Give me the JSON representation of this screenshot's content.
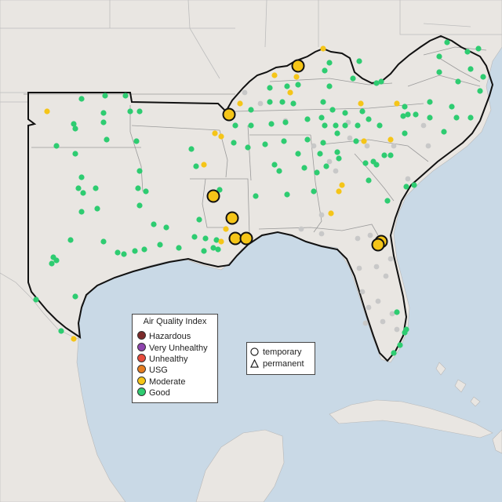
{
  "map": {
    "region": "Southeastern United States",
    "colors": {
      "ocean": "#c9d9e6",
      "land": "#e9e6e2",
      "region_boundary": "#111111",
      "state_lines": "#9a9a9a",
      "good": "#2ecc71",
      "moderate": "#f5c518",
      "usg": "#e67e22",
      "unhealthy": "#e74c3c",
      "very_unhealthy": "#8e44ad",
      "hazardous": "#7b2a2a",
      "no_data": "#c8c8c8"
    }
  },
  "legend_aqi": {
    "title": "Air Quality Index",
    "items": [
      {
        "label": "Hazardous",
        "color": "#7b2a2a"
      },
      {
        "label": "Very Unhealthy",
        "color": "#8e44ad"
      },
      {
        "label": "Unhealthy",
        "color": "#e74c3c"
      },
      {
        "label": "USG",
        "color": "#e67e22"
      },
      {
        "label": "Moderate",
        "color": "#f5c518"
      },
      {
        "label": "Good",
        "color": "#2ecc71"
      }
    ]
  },
  "legend_monitors": {
    "items": [
      {
        "label": "temporary",
        "shape": "circle-icon"
      },
      {
        "label": "permanent",
        "shape": "triangle-icon"
      }
    ]
  }
}
